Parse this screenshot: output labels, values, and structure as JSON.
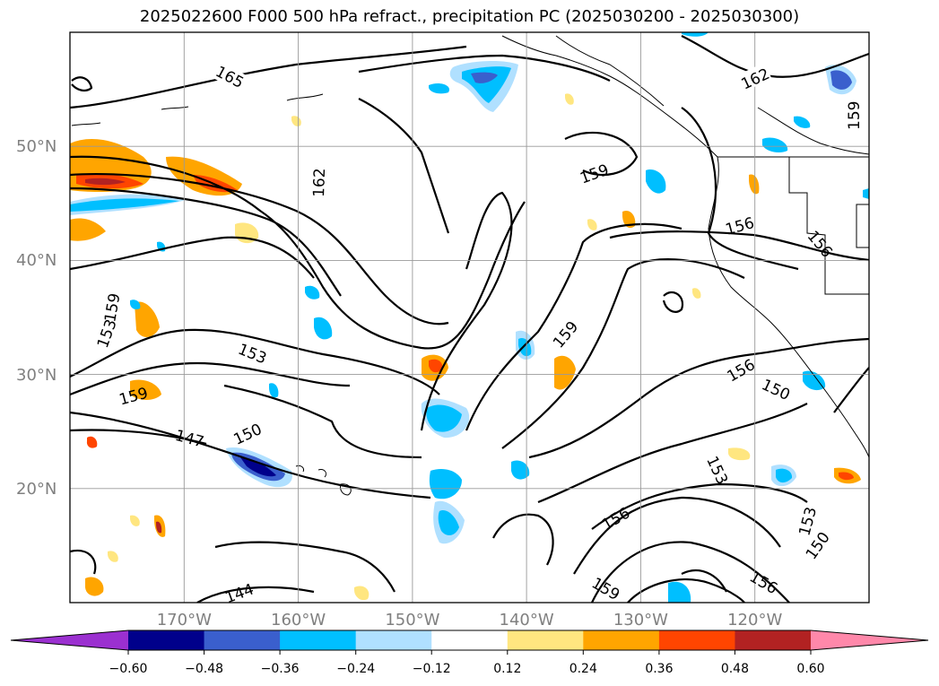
{
  "map": {
    "title": "2025022600 F000 500 hPa refract., precipitation PC (2025030200 - 2025030300)",
    "lat_labels": [
      "50°N",
      "40°N",
      "30°N",
      "20°N"
    ],
    "lon_labels": [
      "170°W",
      "160°W",
      "150°W",
      "140°W",
      "130°W",
      "120°W"
    ],
    "contour_labels": [
      "165",
      "162",
      "159",
      "156",
      "153",
      "150",
      "147",
      "144"
    ],
    "extent": {
      "lon_min": -180,
      "lon_max": -110,
      "lat_min": 10,
      "lat_max": 60
    }
  },
  "colorbar": {
    "ticks": [
      "−0.60",
      "−0.48",
      "−0.36",
      "−0.24",
      "−0.12",
      "0.12",
      "0.24",
      "0.36",
      "0.48",
      "0.60"
    ],
    "colors": [
      "#9b30d0",
      "#00008b",
      "#3a5fcd",
      "#00bfff",
      "#b0e0ff",
      "#ffffff",
      "#ffe680",
      "#ffa500",
      "#ff4500",
      "#b22222",
      "#ff88aa"
    ]
  }
}
